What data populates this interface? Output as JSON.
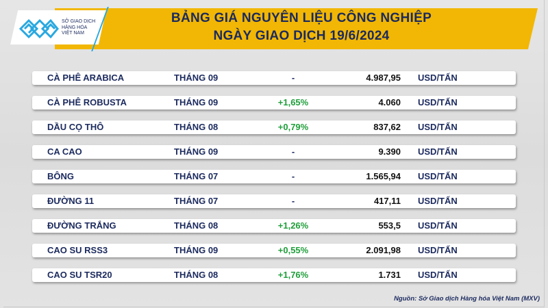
{
  "header": {
    "title_line1": "BẢNG GIÁ NGUYÊN LIỆU CÔNG NGHIỆP",
    "title_line2": "NGÀY GIAO DỊCH 19/6/2024"
  },
  "logo": {
    "text": "SỞ GIAO DỊCH HÀNG HÓA VIỆT NAM",
    "line1": "SỞ GIAO DỊCH",
    "line2": "HÀNG HÓA",
    "line3": "VIỆT NAM"
  },
  "colors": {
    "banner": "#f2b705",
    "navy": "#1b2a5e",
    "up": "#1f9e3a"
  },
  "rows": [
    {
      "name": "CÀ PHÊ ARABICA",
      "month": "THÁNG 09",
      "change": "-",
      "value": "4.987,95",
      "unit": "USD/TẤN"
    },
    {
      "name": "CÀ PHÊ ROBUSTA",
      "month": "THÁNG 09",
      "change": "+1,65%",
      "value": "4.060",
      "unit": "USD/TẤN"
    },
    {
      "name": "DẦU CỌ THÔ",
      "month": "THÁNG 08",
      "change": "+0,79%",
      "value": "837,62",
      "unit": "USD/TẤN"
    },
    {
      "name": "CA CAO",
      "month": "THÁNG 09",
      "change": "-",
      "value": "9.390",
      "unit": "USD/TẤN"
    },
    {
      "name": "BÔNG",
      "month": "THÁNG 07",
      "change": "-",
      "value": "1.565,94",
      "unit": "USD/TẤN"
    },
    {
      "name": "ĐƯỜNG 11",
      "month": "THÁNG 07",
      "change": "-",
      "value": "417,11",
      "unit": "USD/TẤN"
    },
    {
      "name": "ĐƯỜNG TRẮNG",
      "month": "THÁNG 08",
      "change": "+1,26%",
      "value": "553,5",
      "unit": "USD/TẤN"
    },
    {
      "name": "CAO SU RSS3",
      "month": "THÁNG 09",
      "change": "+0,55%",
      "value": "2.091,98",
      "unit": "USD/TẤN"
    },
    {
      "name": "CAO SU TSR20",
      "month": "THÁNG 08",
      "change": "+1,76%",
      "value": "1.731",
      "unit": "USD/TẤN"
    }
  ],
  "footer": {
    "source": "Nguồn: Sở Giao dịch Hàng hóa Việt Nam (MXV)"
  }
}
